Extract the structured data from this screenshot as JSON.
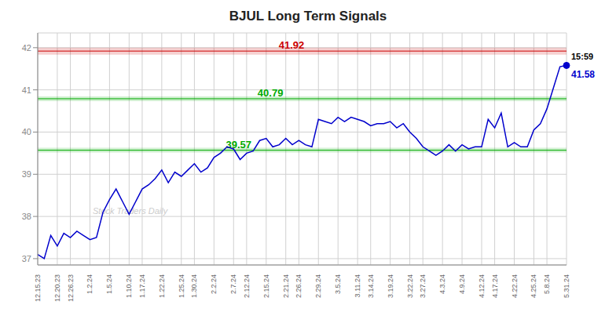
{
  "chart_data": {
    "type": "line",
    "title": "BJUL Long Term Signals",
    "categories": [
      "12.15.23",
      null,
      null,
      "12.20.23",
      null,
      "12.26.23",
      null,
      null,
      "1.2.24",
      null,
      null,
      "1.5.24",
      null,
      null,
      "1.10.24",
      null,
      "1.17.24",
      null,
      null,
      "1.22.24",
      null,
      null,
      "1.25.24",
      null,
      "1.30.24",
      null,
      null,
      "2.2.24",
      null,
      null,
      "2.7.24",
      null,
      "2.12.24",
      null,
      null,
      "2.15.24",
      null,
      null,
      "2.21.24",
      null,
      "2.26.24",
      null,
      null,
      "2.29.24",
      null,
      null,
      "3.5.24",
      null,
      null,
      "3.11.24",
      null,
      "3.14.24",
      null,
      null,
      "3.19.24",
      null,
      null,
      "3.22.24",
      null,
      "3.27.24",
      null,
      null,
      "4.3.24",
      null,
      null,
      "4.9.24",
      null,
      null,
      "4.12.24",
      null,
      "4.17.24",
      null,
      null,
      "4.22.24",
      null,
      null,
      "4.25.24",
      null,
      "5.8.24",
      null,
      null,
      "5.31.24"
    ],
    "values": [
      37.1,
      37.0,
      37.55,
      37.3,
      37.6,
      37.5,
      37.65,
      37.55,
      37.45,
      37.5,
      38.1,
      38.4,
      38.65,
      38.35,
      38.05,
      38.35,
      38.65,
      38.75,
      38.9,
      39.1,
      38.8,
      39.05,
      38.95,
      39.1,
      39.25,
      39.05,
      39.15,
      39.4,
      39.5,
      39.65,
      39.6,
      39.35,
      39.5,
      39.55,
      39.8,
      39.85,
      39.65,
      39.7,
      39.85,
      39.7,
      39.8,
      39.7,
      39.65,
      40.3,
      40.25,
      40.2,
      40.35,
      40.25,
      40.35,
      40.3,
      40.25,
      40.15,
      40.2,
      40.2,
      40.25,
      40.1,
      40.2,
      40.0,
      39.85,
      39.65,
      39.55,
      39.45,
      39.55,
      39.7,
      39.55,
      39.7,
      39.6,
      39.65,
      39.65,
      40.3,
      40.1,
      40.45,
      39.65,
      39.75,
      39.65,
      39.65,
      40.05,
      40.2,
      40.55,
      41.05,
      41.55,
      41.58
    ],
    "color": "#0000cc",
    "ylim": [
      36.85,
      42.35
    ],
    "yticks": [
      37,
      38,
      39,
      40,
      41,
      42
    ],
    "grid": true,
    "reference_lines": [
      {
        "value": 41.92,
        "label": "41.92",
        "color": "#cc0000"
      },
      {
        "value": 40.79,
        "label": "40.79",
        "color": "#00aa00"
      },
      {
        "value": 39.57,
        "label": "39.57",
        "color": "#00aa00"
      }
    ],
    "last_price": {
      "value": 41.58,
      "label": "41.58"
    },
    "annotations": [
      {
        "text": "15:59"
      },
      {
        "text": "Stock Traders Daily"
      }
    ]
  }
}
